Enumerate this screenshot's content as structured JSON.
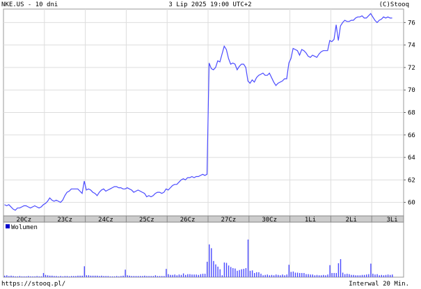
{
  "header": {
    "symbol_title": "NKE.US - 10 dni",
    "datetime": "3 Lip 2025 19:00 UTC+2",
    "copyright": "(C)Stooq"
  },
  "footer": {
    "url": "https://stooq.pl/",
    "interval": "Interwal 20 Min."
  },
  "colors": {
    "line": "#4a4aff",
    "volume": "#4a4aff",
    "grid": "#dddddd",
    "axis_bar": "#cccccc"
  },
  "chart_data": [
    {
      "type": "line",
      "title": "NKE.US - 10 dni",
      "x_tick_labels": [
        "20Cz",
        "23Cz",
        "24Cz",
        "25Cz",
        "26Cz",
        "27Cz",
        "30Cz",
        "1Li",
        "2Li",
        "3Li"
      ],
      "y_tick_labels": [
        "60",
        "62",
        "64",
        "66",
        "68",
        "70",
        "72",
        "74",
        "76"
      ],
      "ylim": [
        58.8,
        77.2
      ],
      "grid": true,
      "y_axis_side": "right",
      "interval": "20 min",
      "series_by_day": [
        [
          59.8,
          59.7,
          59.8,
          59.6,
          59.4,
          59.3,
          59.5,
          59.5,
          59.6,
          59.7,
          59.7,
          59.6,
          59.5,
          59.6,
          59.7,
          59.6,
          59.5,
          59.6,
          59.8
        ],
        [
          59.9,
          60.1,
          60.4,
          60.2,
          60.1,
          60.2,
          60.1,
          60.0,
          60.2,
          60.6,
          60.9,
          61.0,
          61.2,
          61.2,
          61.2,
          61.2,
          61.0,
          60.8,
          61.9
        ],
        [
          61.1,
          61.2,
          61.1,
          60.9,
          60.8,
          60.6,
          60.9,
          61.1,
          61.2,
          61.0,
          61.1,
          61.2,
          61.3,
          61.4,
          61.4,
          61.3,
          61.3,
          61.2,
          61.2
        ],
        [
          61.3,
          61.2,
          61.1,
          60.9,
          61.0,
          61.1,
          61.0,
          60.9,
          60.8,
          60.5,
          60.6,
          60.5,
          60.6,
          60.8,
          60.9,
          60.9,
          60.8,
          60.9,
          61.2
        ],
        [
          61.1,
          61.3,
          61.5,
          61.6,
          61.6,
          61.8,
          62.0,
          62.1,
          62.0,
          62.2,
          62.2,
          62.3,
          62.2,
          62.3,
          62.3,
          62.4,
          62.5,
          62.4,
          62.5
        ],
        [
          72.4,
          71.9,
          71.8,
          72.0,
          72.6,
          72.5,
          73.2,
          73.9,
          73.6,
          72.8,
          72.3,
          72.4,
          72.3,
          71.8,
          72.1,
          72.3,
          72.3,
          72.0,
          70.8
        ],
        [
          70.6,
          70.9,
          70.7,
          71.1,
          71.3,
          71.4,
          71.5,
          71.3,
          71.3,
          71.5,
          71.1,
          70.7,
          70.4,
          70.6,
          70.7,
          70.8,
          71.0,
          71.0,
          72.4
        ],
        [
          72.8,
          73.7,
          73.6,
          73.5,
          73.1,
          73.6,
          73.5,
          73.3,
          73.0,
          72.9,
          73.1,
          73.0,
          72.9,
          73.2,
          73.4,
          73.5,
          73.5,
          73.5,
          74.4
        ],
        [
          74.3,
          74.5,
          75.8,
          74.4,
          75.7,
          76.0,
          76.2,
          76.1,
          76.1,
          76.2,
          76.2,
          76.4,
          76.5,
          76.5,
          76.6,
          76.4,
          76.4,
          76.6,
          76.8
        ],
        [
          76.5,
          76.2,
          76.0,
          76.2,
          76.3,
          76.5,
          76.4,
          76.5,
          76.4,
          76.4
        ]
      ]
    },
    {
      "type": "bar",
      "legend": "Wolumen",
      "legend_position": "top-left",
      "volume_relative_by_day": [
        [
          4,
          5,
          3,
          4,
          3,
          2,
          2,
          3,
          2,
          2,
          2,
          3,
          2,
          2,
          2,
          3,
          2,
          2,
          11
        ],
        [
          6,
          5,
          4,
          4,
          3,
          3,
          2,
          3,
          2,
          3,
          3,
          2,
          3,
          3,
          3,
          4,
          4,
          4,
          29
        ],
        [
          5,
          5,
          4,
          4,
          4,
          4,
          3,
          4,
          3,
          3,
          3,
          2,
          2,
          2,
          3,
          2,
          3,
          4,
          20
        ],
        [
          5,
          4,
          3,
          3,
          3,
          3,
          3,
          3,
          4,
          3,
          3,
          3,
          3,
          5,
          3,
          3,
          3,
          3,
          22
        ],
        [
          8,
          6,
          6,
          7,
          5,
          7,
          6,
          10,
          6,
          8,
          8,
          7,
          7,
          7,
          6,
          8,
          9,
          9,
          41
        ],
        [
          87,
          77,
          43,
          34,
          28,
          21,
          5,
          39,
          38,
          31,
          27,
          24,
          23,
          17,
          19,
          21,
          22,
          24,
          100
        ],
        [
          17,
          18,
          11,
          13,
          13,
          9,
          5,
          6,
          7,
          5,
          6,
          5,
          7,
          6,
          5,
          7,
          5,
          7,
          33
        ],
        [
          14,
          15,
          12,
          12,
          11,
          11,
          11,
          8,
          8,
          7,
          7,
          5,
          6,
          5,
          5,
          6,
          5,
          7,
          32
        ],
        [
          11,
          11,
          11,
          37,
          48,
          12,
          8,
          9,
          8,
          6,
          6,
          5,
          5,
          5,
          6,
          6,
          7,
          8,
          36
        ],
        [
          9,
          7,
          8,
          5,
          6,
          5,
          6,
          7,
          6,
          7
        ]
      ]
    }
  ]
}
